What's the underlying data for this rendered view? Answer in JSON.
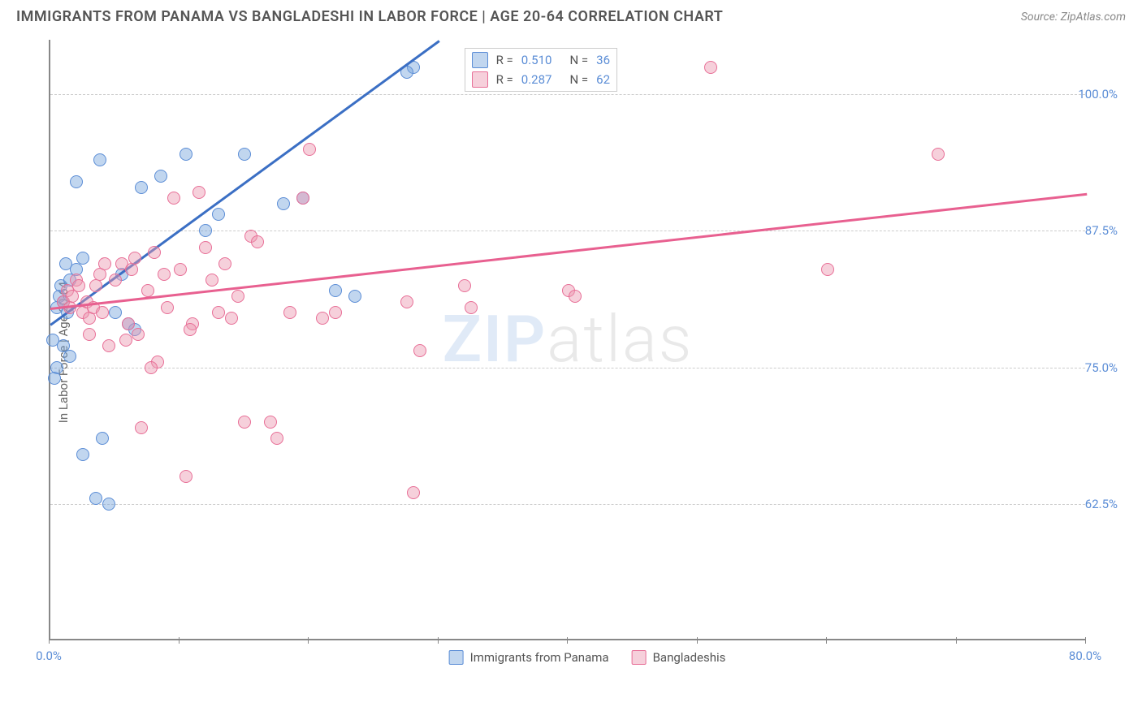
{
  "header": {
    "title": "IMMIGRANTS FROM PANAMA VS BANGLADESHI IN LABOR FORCE | AGE 20-64 CORRELATION CHART",
    "source": "Source: ZipAtlas.com"
  },
  "chart": {
    "type": "scatter",
    "y_axis_label": "In Labor Force | Age 20-64",
    "xlim": [
      0,
      80
    ],
    "ylim": [
      50,
      105
    ],
    "x_ticks": [
      0,
      10,
      20,
      30,
      40,
      50,
      60,
      70,
      80
    ],
    "x_tick_labels": {
      "0": "0.0%",
      "80": "80.0%"
    },
    "y_ticks": [
      62.5,
      75.0,
      87.5,
      100.0
    ],
    "y_tick_labels": [
      "62.5%",
      "75.0%",
      "87.5%",
      "100.0%"
    ],
    "grid_color": "#cccccc",
    "axis_color": "#888888",
    "background_color": "#ffffff",
    "marker_radius": 8,
    "series": [
      {
        "name": "Immigrants from Panama",
        "label": "Immigrants from Panama",
        "R": "0.510",
        "N": "36",
        "fill_color": "rgba(117,163,219,0.45)",
        "stroke_color": "#5b8dd6",
        "line_color": "#3b6fc4",
        "trend": {
          "x1": 0,
          "y1": 79,
          "x2": 30,
          "y2": 105
        },
        "points": [
          [
            0.5,
            80.5
          ],
          [
            0.7,
            81.5
          ],
          [
            0.8,
            82.5
          ],
          [
            1.0,
            81.0
          ],
          [
            1.2,
            84.5
          ],
          [
            1.5,
            83.0
          ],
          [
            1.3,
            80.0
          ],
          [
            2.0,
            84.0
          ],
          [
            2.5,
            85.0
          ],
          [
            1.0,
            77.0
          ],
          [
            1.5,
            76.0
          ],
          [
            0.5,
            75.0
          ],
          [
            0.3,
            74.0
          ],
          [
            0.2,
            77.5
          ],
          [
            2.0,
            92.0
          ],
          [
            3.8,
            94.0
          ],
          [
            4.0,
            68.5
          ],
          [
            2.5,
            67.0
          ],
          [
            3.5,
            63.0
          ],
          [
            4.5,
            62.5
          ],
          [
            5.0,
            80.0
          ],
          [
            6.0,
            79.0
          ],
          [
            6.5,
            78.5
          ],
          [
            7.0,
            91.5
          ],
          [
            8.5,
            92.5
          ],
          [
            10.5,
            94.5
          ],
          [
            12.0,
            87.5
          ],
          [
            13.0,
            89.0
          ],
          [
            15.0,
            94.5
          ],
          [
            18.0,
            90.0
          ],
          [
            19.5,
            90.5
          ],
          [
            22.0,
            82.0
          ],
          [
            23.5,
            81.5
          ],
          [
            28.0,
            102.5
          ],
          [
            27.5,
            102.0
          ],
          [
            5.5,
            83.5
          ]
        ]
      },
      {
        "name": "Bangladeshis",
        "label": "Bangladeshis",
        "R": "0.287",
        "N": "62",
        "fill_color": "rgba(235,150,175,0.45)",
        "stroke_color": "#e86f97",
        "line_color": "#e86090",
        "trend": {
          "x1": 0,
          "y1": 80.5,
          "x2": 80,
          "y2": 91
        },
        "points": [
          [
            1.0,
            81.0
          ],
          [
            1.3,
            82.0
          ],
          [
            1.5,
            80.5
          ],
          [
            1.7,
            81.5
          ],
          [
            2.0,
            83.0
          ],
          [
            2.2,
            82.5
          ],
          [
            2.5,
            80.0
          ],
          [
            2.8,
            81.0
          ],
          [
            3.0,
            79.5
          ],
          [
            3.3,
            80.5
          ],
          [
            3.5,
            82.5
          ],
          [
            3.8,
            83.5
          ],
          [
            4.0,
            80.0
          ],
          [
            4.5,
            77.0
          ],
          [
            5.0,
            83.0
          ],
          [
            5.5,
            84.5
          ],
          [
            6.0,
            79.0
          ],
          [
            6.3,
            84.0
          ],
          [
            6.8,
            78.0
          ],
          [
            7.0,
            69.5
          ],
          [
            7.5,
            82.0
          ],
          [
            8.0,
            85.5
          ],
          [
            8.3,
            75.5
          ],
          [
            9.0,
            80.5
          ],
          [
            9.5,
            90.5
          ],
          [
            10.0,
            84.0
          ],
          [
            10.5,
            65.0
          ],
          [
            11.0,
            79.0
          ],
          [
            11.5,
            91.0
          ],
          [
            12.0,
            86.0
          ],
          [
            13.5,
            84.5
          ],
          [
            14.0,
            79.5
          ],
          [
            15.0,
            70.0
          ],
          [
            15.5,
            87.0
          ],
          [
            16.0,
            86.5
          ],
          [
            17.0,
            70.0
          ],
          [
            17.5,
            68.5
          ],
          [
            18.5,
            80.0
          ],
          [
            19.5,
            90.5
          ],
          [
            20.0,
            95.0
          ],
          [
            21.0,
            79.5
          ],
          [
            22.0,
            80.0
          ],
          [
            27.5,
            81.0
          ],
          [
            28.0,
            63.5
          ],
          [
            28.5,
            76.5
          ],
          [
            32.0,
            82.5
          ],
          [
            32.5,
            80.5
          ],
          [
            40.0,
            82.0
          ],
          [
            40.5,
            81.5
          ],
          [
            51.0,
            102.5
          ],
          [
            60.0,
            84.0
          ],
          [
            68.5,
            94.5
          ],
          [
            3.0,
            78.0
          ],
          [
            4.2,
            84.5
          ],
          [
            5.8,
            77.5
          ],
          [
            6.5,
            85.0
          ],
          [
            7.8,
            75.0
          ],
          [
            8.8,
            83.5
          ],
          [
            10.8,
            78.5
          ],
          [
            12.5,
            83.0
          ],
          [
            13.0,
            80.0
          ],
          [
            14.5,
            81.5
          ]
        ]
      }
    ],
    "watermark": {
      "zip": "ZIP",
      "atlas": "atlas"
    },
    "legend_bottom": [
      {
        "swatch_fill": "rgba(117,163,219,0.45)",
        "swatch_stroke": "#5b8dd6",
        "label": "Immigrants from Panama"
      },
      {
        "swatch_fill": "rgba(235,150,175,0.45)",
        "swatch_stroke": "#e86f97",
        "label": "Bangladeshis"
      }
    ]
  }
}
